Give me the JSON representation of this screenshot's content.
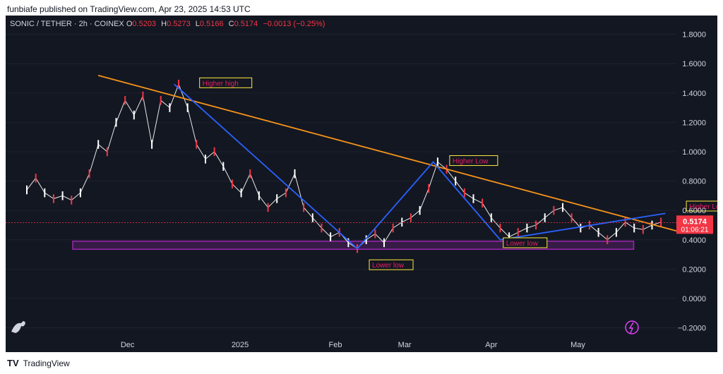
{
  "header": {
    "text": "funbiafe published on TradingView.com, Apr 23, 2025 14:53 UTC"
  },
  "legend": {
    "symbol": "SONIC / TETHER · 2h · COINEX",
    "open_label": "O",
    "open": "0.5203",
    "high_label": "H",
    "high": "0.5273",
    "low_label": "L",
    "low": "0.5166",
    "close_label": "C",
    "close": "0.5174",
    "change": "−0.0013 (−0.25%)"
  },
  "price_tag": {
    "price": "0.5174",
    "countdown": "01:06:21",
    "color": "#f23645"
  },
  "brand": {
    "logo": "TV",
    "name": "TradingView"
  },
  "colors": {
    "background": "#131722",
    "trendline": "#f7931a",
    "zigzag": "#2962ff",
    "support_zone": "#9c27b0",
    "label_border": "#ffeb3b",
    "label_text": "#e91e63"
  },
  "chart_data": {
    "type": "line",
    "yticks": [
      "1.8000",
      "1.6000",
      "1.4000",
      "1.2000",
      "1.0000",
      "0.8000",
      "0.6000",
      "0.4000",
      "0.2000",
      "0.0000",
      "−0.2000"
    ],
    "ylim": [
      -0.26,
      1.88
    ],
    "xticks": [
      "Dec",
      "2025",
      "Feb",
      "Mar",
      "Apr",
      "May"
    ],
    "price_series": [
      [
        0,
        0.74
      ],
      [
        1,
        0.82
      ],
      [
        2,
        0.72
      ],
      [
        3,
        0.68
      ],
      [
        4,
        0.7
      ],
      [
        5,
        0.67
      ],
      [
        6,
        0.72
      ],
      [
        7,
        0.85
      ],
      [
        8,
        1.05
      ],
      [
        9,
        1.0
      ],
      [
        10,
        1.2
      ],
      [
        11,
        1.35
      ],
      [
        12,
        1.25
      ],
      [
        13,
        1.38
      ],
      [
        14,
        1.05
      ],
      [
        15,
        1.35
      ],
      [
        16,
        1.3
      ],
      [
        17,
        1.46
      ],
      [
        18,
        1.3
      ],
      [
        19,
        1.05
      ],
      [
        20,
        0.95
      ],
      [
        21,
        1.0
      ],
      [
        22,
        0.9
      ],
      [
        23,
        0.78
      ],
      [
        24,
        0.72
      ],
      [
        25,
        0.85
      ],
      [
        26,
        0.7
      ],
      [
        27,
        0.62
      ],
      [
        28,
        0.68
      ],
      [
        29,
        0.72
      ],
      [
        30,
        0.85
      ],
      [
        31,
        0.62
      ],
      [
        32,
        0.55
      ],
      [
        33,
        0.48
      ],
      [
        34,
        0.42
      ],
      [
        35,
        0.45
      ],
      [
        36,
        0.38
      ],
      [
        37,
        0.34
      ],
      [
        38,
        0.4
      ],
      [
        39,
        0.44
      ],
      [
        40,
        0.38
      ],
      [
        41,
        0.48
      ],
      [
        42,
        0.52
      ],
      [
        43,
        0.55
      ],
      [
        44,
        0.6
      ],
      [
        45,
        0.75
      ],
      [
        46,
        0.93
      ],
      [
        47,
        0.88
      ],
      [
        48,
        0.8
      ],
      [
        49,
        0.72
      ],
      [
        50,
        0.68
      ],
      [
        51,
        0.65
      ],
      [
        52,
        0.55
      ],
      [
        53,
        0.48
      ],
      [
        54,
        0.42
      ],
      [
        55,
        0.45
      ],
      [
        56,
        0.48
      ],
      [
        57,
        0.5
      ],
      [
        58,
        0.55
      ],
      [
        59,
        0.6
      ],
      [
        60,
        0.62
      ],
      [
        61,
        0.55
      ],
      [
        62,
        0.48
      ],
      [
        63,
        0.5
      ],
      [
        64,
        0.45
      ],
      [
        65,
        0.4
      ],
      [
        66,
        0.45
      ],
      [
        67,
        0.52
      ],
      [
        68,
        0.48
      ],
      [
        69,
        0.47
      ],
      [
        70,
        0.5
      ],
      [
        71,
        0.52
      ]
    ],
    "trendline": {
      "start": [
        7.2,
        1.52
      ],
      "end": [
        80,
        0.46
      ]
    },
    "zigzag": [
      [
        16.5,
        1.46
      ],
      [
        37,
        0.34
      ],
      [
        45.5,
        0.93
      ],
      [
        53,
        0.4
      ],
      [
        71.5,
        0.58
      ]
    ],
    "support_zone": {
      "x_start": 0,
      "x_end": 73,
      "y_low": 0.335,
      "y_high": 0.39
    },
    "labels": [
      {
        "text": "Higher high",
        "x": 19.5,
        "y": 1.46
      },
      {
        "text": "Higher Low",
        "x": 47.5,
        "y": 0.93
      },
      {
        "text": "Lower low",
        "x": 38.5,
        "y": 0.22
      },
      {
        "text": "Lower low",
        "x": 53.5,
        "y": 0.37
      },
      {
        "text": "Higher Low",
        "x": 74,
        "y": 0.62
      }
    ],
    "xmax": 80
  }
}
